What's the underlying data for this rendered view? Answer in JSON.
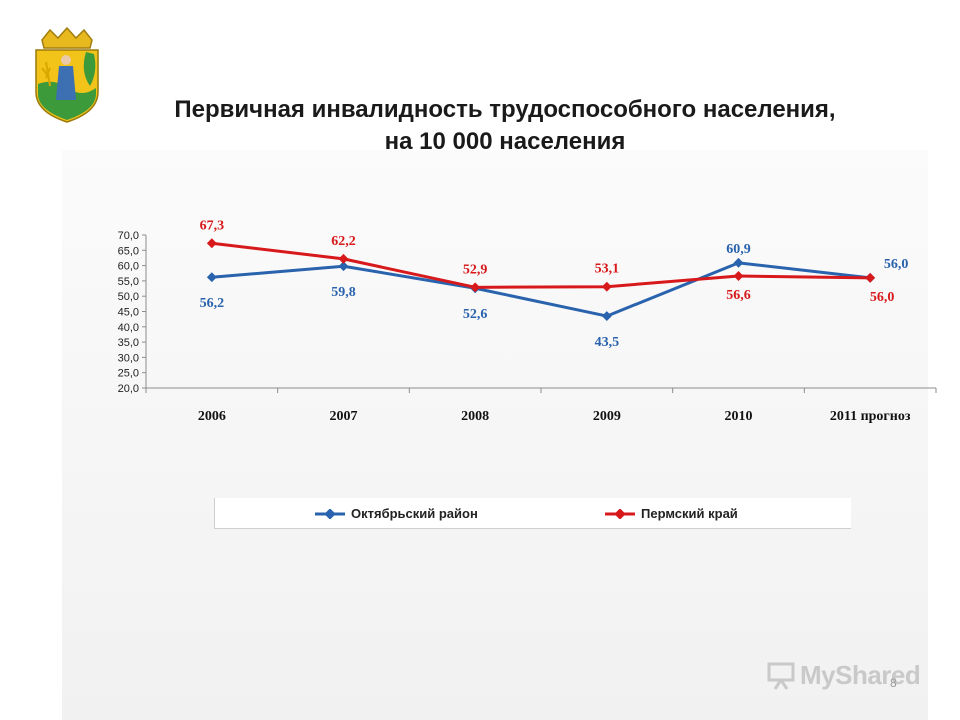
{
  "slide": {
    "title_line1": "Первичная инвалидность трудоспособного населения,",
    "title_line2": "на 10 000 населения",
    "page_number": "8",
    "watermark": "MyShared"
  },
  "colors": {
    "series1": "#2a63ad",
    "series2": "#d7191c",
    "axis": "#8c8c8c"
  },
  "chart_data": {
    "type": "line",
    "title": "",
    "xlabel": "",
    "ylabel": "",
    "categories": [
      "2006",
      "2007",
      "2008",
      "2009",
      "2010",
      "2011 прогноз"
    ],
    "ylim": [
      20,
      70
    ],
    "yticks": [
      "20,0",
      "25,0",
      "30,0",
      "35,0",
      "40,0",
      "45,0",
      "50,0",
      "55,0",
      "60,0",
      "65,0",
      "70,0"
    ],
    "grid": false,
    "legend_position": "bottom",
    "series": [
      {
        "name": "Октябрьский район",
        "values": [
          56.2,
          59.8,
          52.6,
          43.5,
          60.9,
          56.0
        ],
        "labels": [
          "56,2",
          "59,8",
          "52,6",
          "43,5",
          "60,9",
          "56,0"
        ]
      },
      {
        "name": "Пермский край",
        "values": [
          67.3,
          62.2,
          52.9,
          53.1,
          56.6,
          56.0
        ],
        "labels": [
          "67,3",
          "62,2",
          "52,9",
          "53,1",
          "56,6",
          "56,0"
        ]
      }
    ]
  }
}
